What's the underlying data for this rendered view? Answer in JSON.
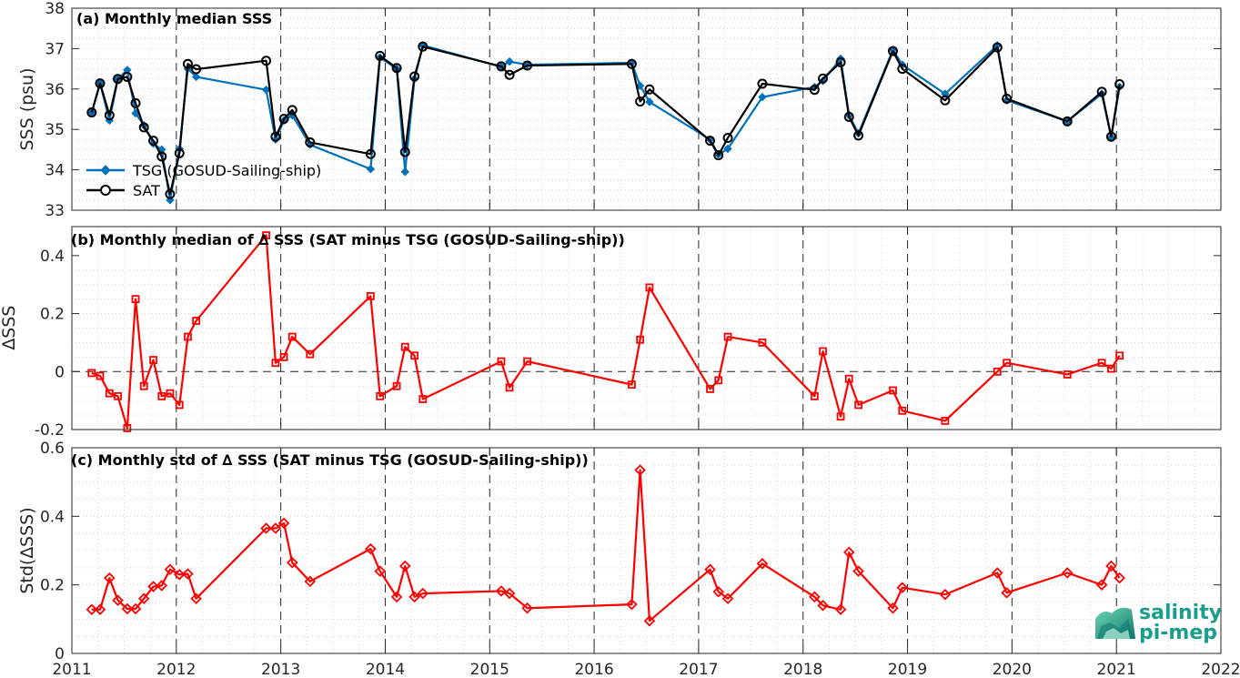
{
  "chart_data": [
    {
      "type": "line",
      "title": "(a) Monthly median SSS",
      "xlabel": "",
      "ylabel": "SSS (psu)",
      "xlim": [
        2011,
        2022
      ],
      "ylim": [
        33,
        38
      ],
      "x_ticks": [
        "2011",
        "2012",
        "2013",
        "2014",
        "2015",
        "2016",
        "2017",
        "2018",
        "2019",
        "2020",
        "2021",
        "2022"
      ],
      "y_ticks": [
        "33",
        "34",
        "35",
        "36",
        "37",
        "38"
      ],
      "grid": "dotted",
      "legend_position": "lower-left",
      "series": [
        {
          "name": "TSG (GOSUD-Sailing-ship)",
          "color": "#0072BD",
          "marker": "diamond",
          "x": [
            2011.19,
            2011.27,
            2011.36,
            2011.44,
            2011.53,
            2011.61,
            2011.69,
            2011.78,
            2011.86,
            2011.94,
            2012.03,
            2012.11,
            2012.19,
            2012.86,
            2012.95,
            2013.03,
            2013.11,
            2013.28,
            2013.86,
            2013.95,
            2014.11,
            2014.19,
            2014.28,
            2014.36,
            2015.11,
            2015.19,
            2015.36,
            2016.36,
            2016.44,
            2016.53,
            2017.11,
            2017.19,
            2017.28,
            2017.61,
            2018.11,
            2018.19,
            2018.36,
            2018.44,
            2018.53,
            2018.86,
            2018.95,
            2019.36,
            2019.86,
            2019.95,
            2020.53,
            2020.86,
            2020.95,
            2021.03
          ],
          "values": [
            35.42,
            36.14,
            35.22,
            36.25,
            36.47,
            35.4,
            35.1,
            34.65,
            34.5,
            33.25,
            34.52,
            36.5,
            36.3,
            35.98,
            34.75,
            35.22,
            35.35,
            34.62,
            34.02,
            36.78,
            36.5,
            33.95,
            36.25,
            37.08,
            36.55,
            36.68,
            36.6,
            36.65,
            36.08,
            35.68,
            34.75,
            34.38,
            34.52,
            35.8,
            36.05,
            36.2,
            36.75,
            35.35,
            34.9,
            36.97,
            36.6,
            35.88,
            37.08,
            35.72,
            35.2,
            35.88,
            34.8,
            36.05
          ]
        },
        {
          "name": "SAT",
          "color": "#000000",
          "marker": "circle",
          "x": [
            2011.19,
            2011.27,
            2011.36,
            2011.44,
            2011.53,
            2011.61,
            2011.69,
            2011.78,
            2011.86,
            2011.94,
            2012.03,
            2012.11,
            2012.19,
            2012.86,
            2012.95,
            2013.03,
            2013.11,
            2013.28,
            2013.86,
            2013.95,
            2014.11,
            2014.19,
            2014.28,
            2014.36,
            2015.11,
            2015.19,
            2015.36,
            2016.36,
            2016.44,
            2016.53,
            2017.11,
            2017.19,
            2017.28,
            2017.61,
            2018.11,
            2018.19,
            2018.36,
            2018.44,
            2018.53,
            2018.86,
            2018.95,
            2019.36,
            2019.86,
            2019.95,
            2020.53,
            2020.86,
            2020.95,
            2021.03
          ],
          "values": [
            35.42,
            36.14,
            35.35,
            36.25,
            36.3,
            35.65,
            35.05,
            34.72,
            34.33,
            33.4,
            34.41,
            36.62,
            36.49,
            36.7,
            34.82,
            35.26,
            35.48,
            34.68,
            34.39,
            36.82,
            36.52,
            34.44,
            36.31,
            37.05,
            36.56,
            36.35,
            36.58,
            36.62,
            35.69,
            35.99,
            34.72,
            34.36,
            34.79,
            36.13,
            35.98,
            36.26,
            36.66,
            35.31,
            34.85,
            36.94,
            36.5,
            35.72,
            37.03,
            35.76,
            35.2,
            35.93,
            34.82,
            36.12
          ]
        }
      ]
    },
    {
      "type": "line",
      "title": "(b) Monthly median of ∆ SSS (SAT minus TSG (GOSUD-Sailing-ship))",
      "xlabel": "",
      "ylabel": "∆SSS",
      "xlim": [
        2011,
        2022
      ],
      "ylim": [
        -0.2,
        0.5
      ],
      "x_ticks": [
        "2011",
        "2012",
        "2013",
        "2014",
        "2015",
        "2016",
        "2017",
        "2018",
        "2019",
        "2020",
        "2021",
        "2022"
      ],
      "y_ticks": [
        "-0.2",
        "0",
        "0.2",
        "0.4"
      ],
      "grid": "dotted",
      "series": [
        {
          "color": "#FF0000",
          "marker": "square",
          "x": [
            2011.19,
            2011.27,
            2011.36,
            2011.44,
            2011.53,
            2011.61,
            2011.69,
            2011.78,
            2011.86,
            2011.94,
            2012.03,
            2012.11,
            2012.19,
            2012.86,
            2012.95,
            2013.03,
            2013.11,
            2013.28,
            2013.86,
            2013.95,
            2014.11,
            2014.19,
            2014.28,
            2014.36,
            2015.11,
            2015.19,
            2015.36,
            2016.36,
            2016.44,
            2016.53,
            2017.11,
            2017.19,
            2017.28,
            2017.61,
            2018.11,
            2018.19,
            2018.36,
            2018.44,
            2018.53,
            2018.86,
            2018.95,
            2019.36,
            2019.86,
            2019.95,
            2020.53,
            2020.86,
            2020.95,
            2021.03
          ],
          "values": [
            -0.005,
            -0.015,
            -0.075,
            -0.085,
            -0.195,
            0.25,
            -0.05,
            0.04,
            -0.085,
            -0.075,
            -0.115,
            0.12,
            0.175,
            0.47,
            0.03,
            0.05,
            0.12,
            0.06,
            0.26,
            -0.085,
            -0.05,
            0.085,
            0.055,
            -0.095,
            0.035,
            -0.055,
            0.035,
            -0.045,
            0.11,
            0.29,
            -0.06,
            -0.03,
            0.12,
            0.1,
            -0.085,
            0.07,
            -0.155,
            -0.025,
            -0.115,
            -0.065,
            -0.135,
            -0.17,
            0.0,
            0.03,
            -0.01,
            0.03,
            0.01,
            0.055
          ]
        }
      ]
    },
    {
      "type": "line",
      "title": "(c) Monthly std of ∆ SSS (SAT minus TSG (GOSUD-Sailing-ship))",
      "xlabel": "",
      "ylabel": "Std(∆SSS)",
      "xlim": [
        2011,
        2022
      ],
      "ylim": [
        0,
        0.6
      ],
      "x_ticks": [
        "2011",
        "2012",
        "2013",
        "2014",
        "2015",
        "2016",
        "2017",
        "2018",
        "2019",
        "2020",
        "2021",
        "2022"
      ],
      "y_ticks": [
        "0",
        "0.2",
        "0.4",
        "0.6"
      ],
      "grid": "dotted",
      "series": [
        {
          "color": "#FF0000",
          "marker": "diamond",
          "x": [
            2011.19,
            2011.27,
            2011.36,
            2011.44,
            2011.53,
            2011.61,
            2011.69,
            2011.78,
            2011.86,
            2011.94,
            2012.03,
            2012.11,
            2012.19,
            2012.86,
            2012.95,
            2013.03,
            2013.11,
            2013.28,
            2013.86,
            2013.95,
            2014.11,
            2014.19,
            2014.28,
            2014.36,
            2015.11,
            2015.19,
            2015.36,
            2016.36,
            2016.44,
            2016.53,
            2017.11,
            2017.19,
            2017.28,
            2017.61,
            2018.11,
            2018.19,
            2018.36,
            2018.44,
            2018.53,
            2018.86,
            2018.95,
            2019.36,
            2019.86,
            2019.95,
            2020.53,
            2020.86,
            2020.95,
            2021.03
          ],
          "values": [
            0.128,
            0.128,
            0.22,
            0.155,
            0.13,
            0.13,
            0.16,
            0.195,
            0.198,
            0.245,
            0.23,
            0.232,
            0.16,
            0.365,
            0.365,
            0.38,
            0.265,
            0.21,
            0.305,
            0.24,
            0.165,
            0.255,
            0.165,
            0.175,
            0.182,
            0.175,
            0.132,
            0.143,
            0.535,
            0.095,
            0.245,
            0.18,
            0.16,
            0.262,
            0.165,
            0.14,
            0.128,
            0.295,
            0.24,
            0.132,
            0.192,
            0.172,
            0.235,
            0.177,
            0.235,
            0.2,
            0.255,
            0.22
          ]
        }
      ]
    }
  ],
  "logo": {
    "line1": "salinity",
    "line2": "pi-mep",
    "color": "#1A9E8C"
  }
}
